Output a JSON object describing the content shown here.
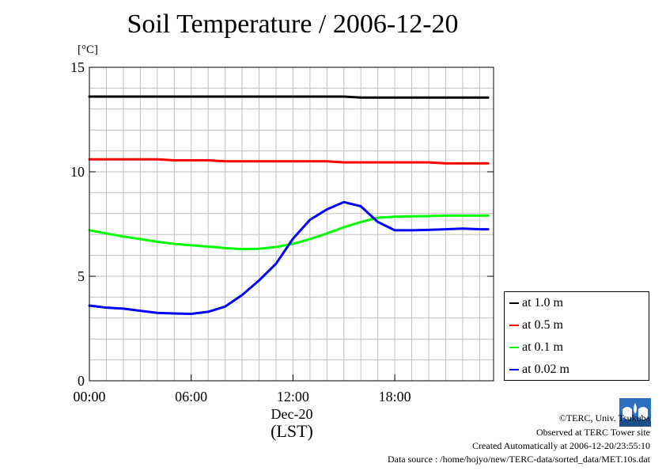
{
  "title": "Soil Temperature / 2006-12-20",
  "y_unit": "[°C]",
  "x_date_label": "Dec-20",
  "x_axis_label": "(LST)",
  "credits": {
    "copyright": "©TERC, Univ. Tsukuba",
    "site": "Observed at TERC Tower site",
    "created": "Created Automatically at 2006-12-20/23:55:10",
    "source": "Data source : /home/hojyo/new/TERC-data/sorted_data/MET.10s.dat"
  },
  "logo_text": "TERC",
  "chart_data": {
    "type": "line",
    "title": "Soil Temperature / 2006-12-20",
    "ylabel": "[°C]",
    "xlabel": "(LST)",
    "xlim": [
      0,
      23.5
    ],
    "ylim": [
      0,
      15
    ],
    "x_ticks": [
      0,
      6,
      12,
      18
    ],
    "x_tick_labels": [
      "00:00",
      "06:00",
      "12:00",
      "18:00"
    ],
    "y_ticks": [
      0,
      5,
      10,
      15
    ],
    "y_tick_labels": [
      "0",
      "5",
      "10",
      "15"
    ],
    "grid": true,
    "legend_position": "right-bottom",
    "x": [
      0,
      1,
      2,
      3,
      4,
      5,
      6,
      7,
      8,
      9,
      10,
      11,
      12,
      13,
      14,
      15,
      16,
      17,
      18,
      19,
      20,
      21,
      22,
      23,
      23.5
    ],
    "series": [
      {
        "name": "at 1.0 m",
        "color": "#000000",
        "values": [
          13.6,
          13.6,
          13.6,
          13.6,
          13.6,
          13.6,
          13.6,
          13.6,
          13.6,
          13.6,
          13.6,
          13.6,
          13.6,
          13.6,
          13.6,
          13.6,
          13.55,
          13.55,
          13.55,
          13.55,
          13.55,
          13.55,
          13.55,
          13.55,
          13.55
        ]
      },
      {
        "name": "at 0.5 m",
        "color": "#ff0000",
        "values": [
          10.6,
          10.6,
          10.6,
          10.6,
          10.6,
          10.55,
          10.55,
          10.55,
          10.5,
          10.5,
          10.5,
          10.5,
          10.5,
          10.5,
          10.5,
          10.45,
          10.45,
          10.45,
          10.45,
          10.45,
          10.45,
          10.4,
          10.4,
          10.4,
          10.4
        ]
      },
      {
        "name": "at 0.1 m",
        "color": "#00ff00",
        "values": [
          7.2,
          7.05,
          6.9,
          6.78,
          6.65,
          6.55,
          6.48,
          6.42,
          6.35,
          6.3,
          6.32,
          6.4,
          6.55,
          6.78,
          7.05,
          7.35,
          7.6,
          7.8,
          7.85,
          7.87,
          7.88,
          7.9,
          7.9,
          7.9,
          7.9
        ]
      },
      {
        "name": "at 0.02 m",
        "color": "#0000ff",
        "values": [
          3.6,
          3.5,
          3.45,
          3.35,
          3.25,
          3.22,
          3.2,
          3.3,
          3.55,
          4.1,
          4.8,
          5.6,
          6.8,
          7.7,
          8.2,
          8.55,
          8.35,
          7.6,
          7.2,
          7.2,
          7.22,
          7.25,
          7.28,
          7.25,
          7.25
        ]
      }
    ]
  }
}
